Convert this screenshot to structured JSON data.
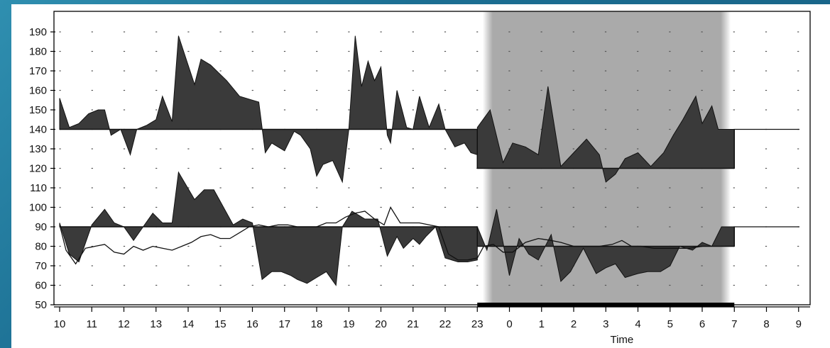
{
  "chart_data": {
    "type": "area",
    "xlabel": "Time",
    "ylabel": "",
    "ylim": [
      50,
      195
    ],
    "y_ticks": [
      50,
      60,
      70,
      80,
      90,
      100,
      110,
      120,
      130,
      140,
      150,
      160,
      170,
      180,
      190
    ],
    "x_tick_labels": [
      "10",
      "11",
      "12",
      "13",
      "14",
      "15",
      "16",
      "17",
      "18",
      "19",
      "20",
      "21",
      "22",
      "23",
      "0",
      "1",
      "2",
      "3",
      "4",
      "5",
      "6",
      "7",
      "8",
      "9"
    ],
    "x_range_hours": [
      9.8,
      33.1
    ],
    "grid": "dotted",
    "night_period": {
      "start": 23.3,
      "end": 30.8,
      "shading": "gray"
    },
    "night_bar": {
      "start": 23.0,
      "end": 31.0
    },
    "colors": {
      "area": "#3a3a3a",
      "line": "#111111",
      "shade": "#aaaaaa",
      "axis": "#000000"
    },
    "series": [
      {
        "kind": "filled-deviation",
        "baseline_day": 140,
        "baseline_night": 120,
        "baseline_change_at": [
          23.0,
          31.0
        ],
        "points": [
          [
            10.0,
            156
          ],
          [
            10.3,
            141
          ],
          [
            10.6,
            143
          ],
          [
            10.9,
            148
          ],
          [
            11.2,
            150
          ],
          [
            11.4,
            150
          ],
          [
            11.6,
            137
          ],
          [
            11.9,
            140
          ],
          [
            12.2,
            127
          ],
          [
            12.4,
            140
          ],
          [
            12.7,
            142
          ],
          [
            13.0,
            145
          ],
          [
            13.2,
            157
          ],
          [
            13.5,
            144
          ],
          [
            13.7,
            188
          ],
          [
            14.2,
            163
          ],
          [
            14.4,
            176
          ],
          [
            14.7,
            173
          ],
          [
            15.2,
            165
          ],
          [
            15.6,
            157
          ],
          [
            16.0,
            155
          ],
          [
            16.2,
            154
          ],
          [
            16.4,
            128
          ],
          [
            16.6,
            133
          ],
          [
            16.8,
            131
          ],
          [
            17.0,
            129
          ],
          [
            17.3,
            139
          ],
          [
            17.5,
            137
          ],
          [
            17.8,
            130
          ],
          [
            18.0,
            116
          ],
          [
            18.2,
            122
          ],
          [
            18.5,
            124
          ],
          [
            18.8,
            113
          ],
          [
            19.0,
            140
          ],
          [
            19.2,
            188
          ],
          [
            19.4,
            162
          ],
          [
            19.6,
            175
          ],
          [
            19.8,
            165
          ],
          [
            20.0,
            172
          ],
          [
            20.2,
            137
          ],
          [
            20.3,
            133
          ],
          [
            20.5,
            160
          ],
          [
            20.8,
            141
          ],
          [
            21.0,
            140
          ],
          [
            21.2,
            157
          ],
          [
            21.5,
            141
          ],
          [
            21.8,
            153
          ],
          [
            22.0,
            140
          ],
          [
            22.3,
            131
          ],
          [
            22.6,
            133
          ],
          [
            22.8,
            128
          ],
          [
            23.0,
            127
          ],
          [
            23.0,
            141
          ],
          [
            23.4,
            150
          ],
          [
            23.8,
            123
          ],
          [
            24.1,
            133
          ],
          [
            24.5,
            131
          ],
          [
            24.9,
            127
          ],
          [
            25.2,
            162
          ],
          [
            25.6,
            121
          ],
          [
            26.0,
            128
          ],
          [
            26.4,
            135
          ],
          [
            26.8,
            127
          ],
          [
            27.0,
            113
          ],
          [
            27.3,
            117
          ],
          [
            27.6,
            125
          ],
          [
            28.0,
            128
          ],
          [
            28.4,
            121
          ],
          [
            28.8,
            128
          ],
          [
            29.1,
            137
          ],
          [
            29.4,
            145
          ],
          [
            29.8,
            157
          ],
          [
            30.0,
            143
          ],
          [
            30.3,
            152
          ],
          [
            30.5,
            140
          ],
          [
            31.0,
            140
          ]
        ]
      },
      {
        "kind": "filled-deviation",
        "baseline_day": 90,
        "baseline_night": 80,
        "baseline_change_at": [
          23.0,
          31.0
        ],
        "points": [
          [
            10.0,
            92
          ],
          [
            10.3,
            76
          ],
          [
            10.6,
            72
          ],
          [
            11.0,
            91
          ],
          [
            11.4,
            99
          ],
          [
            11.7,
            92
          ],
          [
            12.0,
            90
          ],
          [
            12.3,
            83
          ],
          [
            12.6,
            90
          ],
          [
            12.9,
            97
          ],
          [
            13.2,
            92
          ],
          [
            13.5,
            92
          ],
          [
            13.7,
            118
          ],
          [
            14.2,
            104
          ],
          [
            14.5,
            109
          ],
          [
            14.8,
            109
          ],
          [
            15.1,
            100
          ],
          [
            15.4,
            91
          ],
          [
            15.7,
            94
          ],
          [
            16.0,
            92
          ],
          [
            16.3,
            63
          ],
          [
            16.6,
            67
          ],
          [
            16.9,
            67
          ],
          [
            17.2,
            65
          ],
          [
            17.4,
            63
          ],
          [
            17.7,
            61
          ],
          [
            18.0,
            64
          ],
          [
            18.3,
            67
          ],
          [
            18.6,
            60
          ],
          [
            18.8,
            90
          ],
          [
            19.1,
            98
          ],
          [
            19.5,
            94
          ],
          [
            19.9,
            94
          ],
          [
            20.2,
            75
          ],
          [
            20.5,
            85
          ],
          [
            20.7,
            79
          ],
          [
            21.0,
            84
          ],
          [
            21.2,
            81
          ],
          [
            21.4,
            85
          ],
          [
            21.7,
            90
          ],
          [
            22.0,
            74
          ],
          [
            22.4,
            72
          ],
          [
            22.7,
            72
          ],
          [
            23.0,
            73
          ],
          [
            23.0,
            90
          ],
          [
            23.3,
            78
          ],
          [
            23.6,
            99
          ],
          [
            24.0,
            65
          ],
          [
            24.3,
            84
          ],
          [
            24.6,
            76
          ],
          [
            24.9,
            73
          ],
          [
            25.3,
            86
          ],
          [
            25.6,
            62
          ],
          [
            25.9,
            67
          ],
          [
            26.3,
            79
          ],
          [
            26.7,
            66
          ],
          [
            27.0,
            69
          ],
          [
            27.3,
            71
          ],
          [
            27.6,
            64
          ],
          [
            28.0,
            66
          ],
          [
            28.3,
            67
          ],
          [
            28.7,
            67
          ],
          [
            29.0,
            70
          ],
          [
            29.3,
            80
          ],
          [
            29.7,
            78
          ],
          [
            30.0,
            82
          ],
          [
            30.3,
            80
          ],
          [
            30.6,
            90
          ],
          [
            31.0,
            90
          ]
        ]
      },
      {
        "kind": "line",
        "points": [
          [
            10.0,
            91
          ],
          [
            10.2,
            78
          ],
          [
            10.5,
            71
          ],
          [
            10.8,
            79
          ],
          [
            11.1,
            80
          ],
          [
            11.4,
            81
          ],
          [
            11.7,
            77
          ],
          [
            12.0,
            76
          ],
          [
            12.3,
            80
          ],
          [
            12.6,
            78
          ],
          [
            12.9,
            80
          ],
          [
            13.2,
            79
          ],
          [
            13.5,
            78
          ],
          [
            13.8,
            80
          ],
          [
            14.1,
            82
          ],
          [
            14.4,
            85
          ],
          [
            14.7,
            86
          ],
          [
            15.0,
            84
          ],
          [
            15.3,
            84
          ],
          [
            15.6,
            87
          ],
          [
            15.9,
            90
          ],
          [
            16.2,
            91
          ],
          [
            16.5,
            90
          ],
          [
            16.8,
            91
          ],
          [
            17.1,
            91
          ],
          [
            17.4,
            90
          ],
          [
            17.7,
            90
          ],
          [
            18.0,
            90
          ],
          [
            18.3,
            92
          ],
          [
            18.6,
            92
          ],
          [
            18.9,
            95
          ],
          [
            19.2,
            97
          ],
          [
            19.5,
            98
          ],
          [
            19.8,
            94
          ],
          [
            20.1,
            91
          ],
          [
            20.3,
            100
          ],
          [
            20.6,
            92
          ],
          [
            20.9,
            92
          ],
          [
            21.2,
            92
          ],
          [
            21.5,
            91
          ],
          [
            21.8,
            90
          ],
          [
            22.1,
            76
          ],
          [
            22.4,
            73
          ],
          [
            22.7,
            73
          ],
          [
            23.0,
            74
          ],
          [
            23.2,
            80
          ],
          [
            23.5,
            81
          ],
          [
            23.8,
            77
          ],
          [
            24.1,
            77
          ],
          [
            24.5,
            82
          ],
          [
            24.9,
            84
          ],
          [
            25.3,
            83
          ],
          [
            25.6,
            82
          ],
          [
            26.0,
            80
          ],
          [
            26.4,
            80
          ],
          [
            26.8,
            80
          ],
          [
            27.2,
            81
          ],
          [
            27.5,
            83
          ],
          [
            27.8,
            80
          ],
          [
            28.1,
            80
          ],
          [
            28.5,
            79
          ],
          [
            28.9,
            79
          ],
          [
            29.2,
            79
          ],
          [
            29.6,
            79
          ],
          [
            30.0,
            80
          ]
        ]
      }
    ]
  }
}
